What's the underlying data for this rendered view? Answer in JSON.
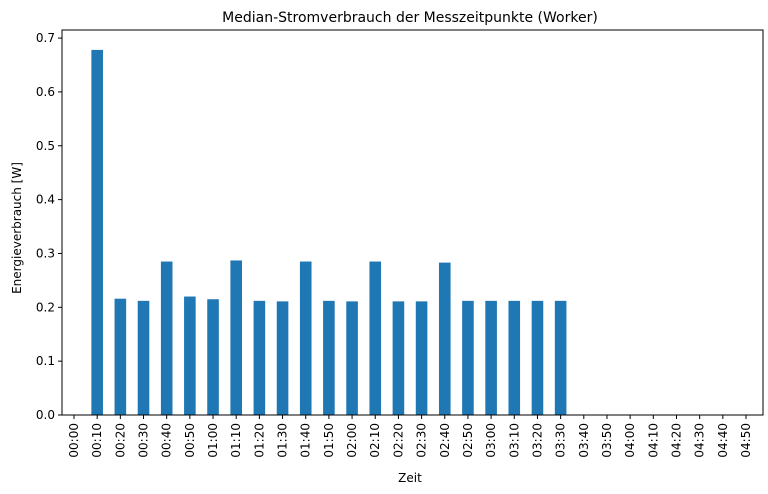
{
  "chart_data": {
    "type": "bar",
    "title": "Median-Stromverbrauch der Messzeitpunkte (Worker)",
    "xlabel": "Zeit",
    "ylabel": "Energieverbrauch [W]",
    "ylim": [
      0,
      0.715
    ],
    "yticks": [
      "0.0",
      "0.1",
      "0.2",
      "0.3",
      "0.4",
      "0.5",
      "0.6",
      "0.7"
    ],
    "grid": false,
    "bar_color": "#1f77b4",
    "categories": [
      "00:00",
      "00:10",
      "00:20",
      "00:30",
      "00:40",
      "00:50",
      "01:00",
      "01:10",
      "01:20",
      "01:30",
      "01:40",
      "01:50",
      "02:00",
      "02:10",
      "02:20",
      "02:30",
      "02:40",
      "02:50",
      "03:00",
      "03:10",
      "03:20",
      "03:30",
      "03:40",
      "03:50",
      "04:00",
      "04:10",
      "04:20",
      "04:30",
      "04:40",
      "04:50"
    ],
    "values": [
      0,
      0.678,
      0.216,
      0.212,
      0.285,
      0.22,
      0.215,
      0.287,
      0.212,
      0.211,
      0.285,
      0.212,
      0.211,
      0.285,
      0.211,
      0.211,
      0.283,
      0.212,
      0.212,
      0.212,
      0.212,
      0.212,
      0,
      0,
      0,
      0,
      0,
      0,
      0,
      0
    ]
  }
}
